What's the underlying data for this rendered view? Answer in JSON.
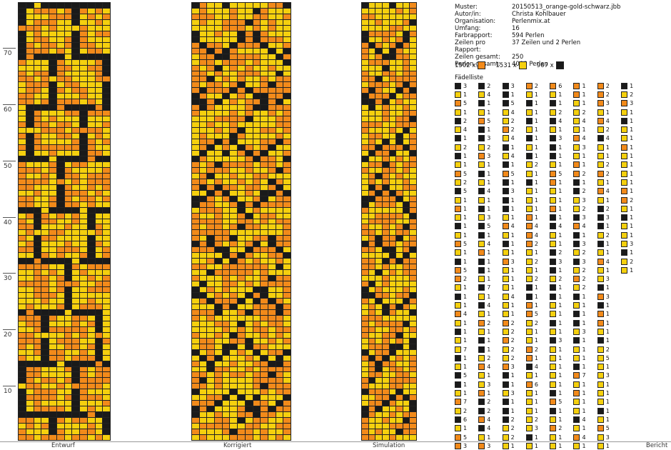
{
  "ruler_labels": [
    "70",
    "60",
    "50",
    "40",
    "30",
    "20",
    "10"
  ],
  "panels": {
    "design": "Entwurf",
    "corrected": "Korrigiert",
    "simulation": "Simulation",
    "report": "Bericht"
  },
  "colors": {
    "black": "#1a1a1a",
    "orange": "#f28a1a",
    "gold": "#f5d00e"
  },
  "info": [
    {
      "key": "Muster:",
      "value": "20150513_orange-gold-schwarz.jbb"
    },
    {
      "key": "Autor/in:",
      "value": "Christa Kohlbauer"
    },
    {
      "key": "Organisation:",
      "value": "Perlenmix.at"
    },
    {
      "key": "Umfang:",
      "value": "16"
    },
    {
      "key": "Farbrapport:",
      "value": "594 Perlen"
    },
    {
      "key": "Zeilen pro Rapport:",
      "value": "37 Zeilen und 2 Perlen"
    },
    {
      "key": "Zeilen gesamt:",
      "value": "250"
    },
    {
      "key": "Perlen gesamt:",
      "value": "4000 Perlen"
    }
  ],
  "counts": [
    {
      "value": "1502 x",
      "color": "orange"
    },
    {
      "value": "1531 x",
      "color": "gold"
    },
    {
      "value": "967 x",
      "color": "black"
    }
  ],
  "list_title": "Fädelliste",
  "threading_list": [
    [
      [
        "k",
        "3"
      ],
      [
        "y",
        "1"
      ],
      [
        "o",
        "5"
      ],
      [
        "y",
        "1"
      ],
      [
        "k",
        "2"
      ],
      [
        "y",
        "4"
      ],
      [
        "k",
        "1"
      ],
      [
        "y",
        "2"
      ],
      [
        "k",
        "1"
      ],
      [
        "y",
        "1"
      ],
      [
        "o",
        "5"
      ],
      [
        "y",
        "2"
      ],
      [
        "k",
        "5"
      ],
      [
        "y",
        "1"
      ],
      [
        "o",
        "1"
      ],
      [
        "y",
        "1"
      ],
      [
        "k",
        "1"
      ],
      [
        "y",
        "1"
      ],
      [
        "o",
        "5"
      ],
      [
        "y",
        "1"
      ],
      [
        "k",
        "1"
      ],
      [
        "o",
        "5"
      ],
      [
        "o",
        "2"
      ],
      [
        "y",
        "1"
      ],
      [
        "k",
        "1"
      ],
      [
        "y",
        "1"
      ],
      [
        "o",
        "4"
      ],
      [
        "y",
        "1"
      ],
      [
        "k",
        "1"
      ],
      [
        "y",
        "1"
      ],
      [
        "y",
        "7"
      ],
      [
        "k",
        "1"
      ],
      [
        "y",
        "1"
      ],
      [
        "k",
        "5"
      ],
      [
        "k",
        "1"
      ],
      [
        "y",
        "1"
      ],
      [
        "o",
        "7"
      ],
      [
        "y",
        "2"
      ],
      [
        "k",
        "6"
      ],
      [
        "y",
        "1"
      ],
      [
        "o",
        "5"
      ],
      [
        "o",
        "3"
      ]
    ],
    [
      [
        "k",
        "2"
      ],
      [
        "y",
        "4"
      ],
      [
        "k",
        "1"
      ],
      [
        "y",
        "1"
      ],
      [
        "o",
        "5"
      ],
      [
        "k",
        "1"
      ],
      [
        "k",
        "3"
      ],
      [
        "y",
        "2"
      ],
      [
        "o",
        "3"
      ],
      [
        "y",
        "1"
      ],
      [
        "k",
        "1"
      ],
      [
        "y",
        "1"
      ],
      [
        "k",
        "4"
      ],
      [
        "y",
        "1"
      ],
      [
        "k",
        "1"
      ],
      [
        "y",
        "3"
      ],
      [
        "k",
        "5"
      ],
      [
        "k",
        "1"
      ],
      [
        "y",
        "4"
      ],
      [
        "o",
        "1"
      ],
      [
        "k",
        "1"
      ],
      [
        "k",
        "1"
      ],
      [
        "y",
        "1"
      ],
      [
        "k",
        "7"
      ],
      [
        "y",
        "1"
      ],
      [
        "k",
        "4"
      ],
      [
        "y",
        "1"
      ],
      [
        "o",
        "2"
      ],
      [
        "y",
        "1"
      ],
      [
        "k",
        "1"
      ],
      [
        "k",
        "1"
      ],
      [
        "y",
        "2"
      ],
      [
        "o",
        "4"
      ],
      [
        "y",
        "1"
      ],
      [
        "y",
        "3"
      ],
      [
        "o",
        "1"
      ],
      [
        "k",
        "2"
      ],
      [
        "k",
        "2"
      ],
      [
        "o",
        "4"
      ],
      [
        "k",
        "4"
      ],
      [
        "y",
        "1"
      ],
      [
        "o",
        "3"
      ]
    ],
    [
      [
        "k",
        "3"
      ],
      [
        "k",
        "1"
      ],
      [
        "k",
        "5"
      ],
      [
        "y",
        "4"
      ],
      [
        "y",
        "2"
      ],
      [
        "o",
        "2"
      ],
      [
        "y",
        "4"
      ],
      [
        "k",
        "1"
      ],
      [
        "y",
        "4"
      ],
      [
        "k",
        "1"
      ],
      [
        "o",
        "5"
      ],
      [
        "k",
        "1"
      ],
      [
        "k",
        "3"
      ],
      [
        "k",
        "1"
      ],
      [
        "k",
        "1"
      ],
      [
        "y",
        "1"
      ],
      [
        "o",
        "4"
      ],
      [
        "y",
        "1"
      ],
      [
        "k",
        "1"
      ],
      [
        "y",
        "1"
      ],
      [
        "o",
        "3"
      ],
      [
        "y",
        "1"
      ],
      [
        "y",
        "1"
      ],
      [
        "y",
        "1"
      ],
      [
        "y",
        "4"
      ],
      [
        "y",
        "1"
      ],
      [
        "y",
        "1"
      ],
      [
        "o",
        "2"
      ],
      [
        "y",
        "2"
      ],
      [
        "o",
        "2"
      ],
      [
        "y",
        "2"
      ],
      [
        "y",
        "2"
      ],
      [
        "o",
        "3"
      ],
      [
        "k",
        "1"
      ],
      [
        "k",
        "1"
      ],
      [
        "y",
        "3"
      ],
      [
        "k",
        "1"
      ],
      [
        "k",
        "1"
      ],
      [
        "k",
        "2"
      ],
      [
        "y",
        "2"
      ],
      [
        "y",
        "2"
      ],
      [
        "y",
        "1"
      ]
    ],
    [
      [
        "o",
        "2"
      ],
      [
        "y",
        "1"
      ],
      [
        "k",
        "1"
      ],
      [
        "y",
        "1"
      ],
      [
        "k",
        "1"
      ],
      [
        "y",
        "1"
      ],
      [
        "k",
        "1"
      ],
      [
        "y",
        "1"
      ],
      [
        "k",
        "1"
      ],
      [
        "y",
        "2"
      ],
      [
        "y",
        "1"
      ],
      [
        "k",
        "1"
      ],
      [
        "y",
        "1"
      ],
      [
        "y",
        "1"
      ],
      [
        "y",
        "1"
      ],
      [
        "o",
        "1"
      ],
      [
        "o",
        "4"
      ],
      [
        "o",
        "4"
      ],
      [
        "o",
        "2"
      ],
      [
        "y",
        "1"
      ],
      [
        "y",
        "2"
      ],
      [
        "y",
        "1"
      ],
      [
        "y",
        "2"
      ],
      [
        "k",
        "1"
      ],
      [
        "k",
        "1"
      ],
      [
        "o",
        "1"
      ],
      [
        "o",
        "5"
      ],
      [
        "y",
        "2"
      ],
      [
        "y",
        "1"
      ],
      [
        "y",
        "1"
      ],
      [
        "o",
        "2"
      ],
      [
        "o",
        "1"
      ],
      [
        "k",
        "4"
      ],
      [
        "y",
        "1"
      ],
      [
        "o",
        "6"
      ],
      [
        "y",
        "1"
      ],
      [
        "y",
        "1"
      ],
      [
        "y",
        "1"
      ],
      [
        "y",
        "2"
      ],
      [
        "y",
        "3"
      ],
      [
        "k",
        "1"
      ],
      [
        "y",
        "1"
      ]
    ],
    [
      [
        "o",
        "6"
      ],
      [
        "y",
        "1"
      ],
      [
        "k",
        "1"
      ],
      [
        "y",
        "2"
      ],
      [
        "k",
        "4"
      ],
      [
        "y",
        "1"
      ],
      [
        "k",
        "3"
      ],
      [
        "k",
        "1"
      ],
      [
        "k",
        "1"
      ],
      [
        "y",
        "1"
      ],
      [
        "o",
        "5"
      ],
      [
        "o",
        "1"
      ],
      [
        "y",
        "1"
      ],
      [
        "y",
        "1"
      ],
      [
        "o",
        "1"
      ],
      [
        "k",
        "1"
      ],
      [
        "k",
        "4"
      ],
      [
        "y",
        "1"
      ],
      [
        "y",
        "1"
      ],
      [
        "k",
        "2"
      ],
      [
        "k",
        "3"
      ],
      [
        "k",
        "1"
      ],
      [
        "y",
        "2"
      ],
      [
        "k",
        "1"
      ],
      [
        "k",
        "1"
      ],
      [
        "y",
        "1"
      ],
      [
        "y",
        "1"
      ],
      [
        "k",
        "1"
      ],
      [
        "y",
        "1"
      ],
      [
        "k",
        "3"
      ],
      [
        "y",
        "1"
      ],
      [
        "y",
        "1"
      ],
      [
        "y",
        "1"
      ],
      [
        "y",
        "1"
      ],
      [
        "y",
        "1"
      ],
      [
        "k",
        "1"
      ],
      [
        "o",
        "5"
      ],
      [
        "k",
        "1"
      ],
      [
        "y",
        "1"
      ],
      [
        "o",
        "2"
      ],
      [
        "y",
        "1"
      ],
      [
        "y",
        "1"
      ]
    ],
    [
      [
        "o",
        "1"
      ],
      [
        "o",
        "1"
      ],
      [
        "y",
        "1"
      ],
      [
        "y",
        "2"
      ],
      [
        "y",
        "4"
      ],
      [
        "y",
        "1"
      ],
      [
        "o",
        "4"
      ],
      [
        "y",
        "3"
      ],
      [
        "y",
        "1"
      ],
      [
        "o",
        "1"
      ],
      [
        "o",
        "2"
      ],
      [
        "k",
        "1"
      ],
      [
        "k",
        "2"
      ],
      [
        "y",
        "3"
      ],
      [
        "y",
        "2"
      ],
      [
        "k",
        "3"
      ],
      [
        "o",
        "4"
      ],
      [
        "k",
        "1"
      ],
      [
        "k",
        "3"
      ],
      [
        "y",
        "2"
      ],
      [
        "k",
        "3"
      ],
      [
        "y",
        "2"
      ],
      [
        "o",
        "2"
      ],
      [
        "y",
        "2"
      ],
      [
        "k",
        "1"
      ],
      [
        "y",
        "1"
      ],
      [
        "k",
        "1"
      ],
      [
        "k",
        "1"
      ],
      [
        "y",
        "3"
      ],
      [
        "k",
        "1"
      ],
      [
        "y",
        "1"
      ],
      [
        "y",
        "1"
      ],
      [
        "k",
        "1"
      ],
      [
        "o",
        "7"
      ],
      [
        "y",
        "1"
      ],
      [
        "o",
        "1"
      ],
      [
        "y",
        "1"
      ],
      [
        "y",
        "1"
      ],
      [
        "k",
        "4"
      ],
      [
        "y",
        "1"
      ],
      [
        "o",
        "4"
      ],
      [
        "y",
        "1"
      ]
    ],
    [
      [
        "o",
        "2"
      ],
      [
        "o",
        "2"
      ],
      [
        "o",
        "3"
      ],
      [
        "y",
        "1"
      ],
      [
        "o",
        "4"
      ],
      [
        "y",
        "2"
      ],
      [
        "k",
        "4"
      ],
      [
        "y",
        "1"
      ],
      [
        "y",
        "1"
      ],
      [
        "y",
        "2"
      ],
      [
        "o",
        "2"
      ],
      [
        "y",
        "1"
      ],
      [
        "o",
        "4"
      ],
      [
        "y",
        "1"
      ],
      [
        "k",
        "2"
      ],
      [
        "k",
        "3"
      ],
      [
        "k",
        "1"
      ],
      [
        "y",
        "2"
      ],
      [
        "k",
        "1"
      ],
      [
        "y",
        "1"
      ],
      [
        "o",
        "4"
      ],
      [
        "y",
        "1"
      ],
      [
        "y",
        "3"
      ],
      [
        "k",
        "1"
      ],
      [
        "o",
        "3"
      ],
      [
        "k",
        "1"
      ],
      [
        "o",
        "1"
      ],
      [
        "o",
        "1"
      ],
      [
        "y",
        "1"
      ],
      [
        "k",
        "1"
      ],
      [
        "y",
        "2"
      ],
      [
        "y",
        "5"
      ],
      [
        "y",
        "1"
      ],
      [
        "y",
        "3"
      ],
      [
        "y",
        "1"
      ],
      [
        "y",
        "1"
      ],
      [
        "y",
        "1"
      ],
      [
        "k",
        "1"
      ],
      [
        "y",
        "1"
      ],
      [
        "o",
        "5"
      ],
      [
        "y",
        "3"
      ],
      [
        "y",
        "1"
      ]
    ],
    [
      [
        "k",
        "1"
      ],
      [
        "y",
        "2"
      ],
      [
        "o",
        "3"
      ],
      [
        "y",
        "1"
      ],
      [
        "k",
        "1"
      ],
      [
        "y",
        "1"
      ],
      [
        "y",
        "1"
      ],
      [
        "o",
        "1"
      ],
      [
        "y",
        "1"
      ],
      [
        "y",
        "1"
      ],
      [
        "y",
        "1"
      ],
      [
        "y",
        "1"
      ],
      [
        "o",
        "1"
      ],
      [
        "o",
        "2"
      ],
      [
        "y",
        "1"
      ],
      [
        "k",
        "1"
      ],
      [
        "y",
        "1"
      ],
      [
        "y",
        "1"
      ],
      [
        "y",
        "3"
      ],
      [
        "k",
        "1"
      ],
      [
        "y",
        "2"
      ],
      [
        "y",
        "1"
      ]
    ]
  ]
}
